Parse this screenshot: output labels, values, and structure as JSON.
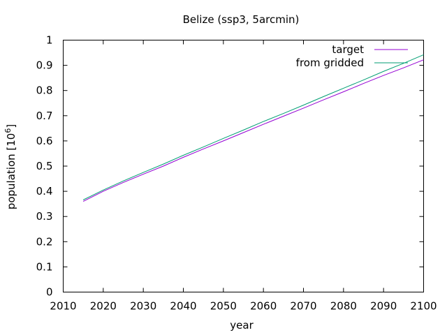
{
  "chart_data": {
    "type": "line",
    "title": "Belize (ssp3, 5arcmin)",
    "xlabel": "year",
    "ylabel_main": "population [10",
    "ylabel_exp": "6",
    "ylabel_close": "]",
    "xlim": [
      2010,
      2100
    ],
    "ylim": [
      0,
      1
    ],
    "xticks": [
      2010,
      2020,
      2030,
      2040,
      2050,
      2060,
      2070,
      2080,
      2090,
      2100
    ],
    "yticks": [
      0,
      0.1,
      0.2,
      0.3,
      0.4,
      0.5,
      0.6,
      0.7,
      0.8,
      0.9,
      1
    ],
    "ytick_labels": [
      "0",
      "0.1",
      "0.2",
      "0.3",
      "0.4",
      "0.5",
      "0.6",
      "0.7",
      "0.8",
      "0.9",
      "1"
    ],
    "xtick_labels": [
      "2010",
      "2020",
      "2030",
      "2040",
      "2050",
      "2060",
      "2070",
      "2080",
      "2090",
      "2100"
    ],
    "grid": false,
    "legend_position": "top-right",
    "x": [
      2015,
      2020,
      2025,
      2030,
      2035,
      2040,
      2045,
      2050,
      2055,
      2060,
      2065,
      2070,
      2075,
      2080,
      2085,
      2090,
      2095,
      2100
    ],
    "series": [
      {
        "name": "target",
        "color": "#9400d3",
        "values": [
          0.36,
          0.4,
          0.435,
          0.468,
          0.5,
          0.535,
          0.568,
          0.6,
          0.633,
          0.666,
          0.698,
          0.73,
          0.763,
          0.795,
          0.828,
          0.86,
          0.89,
          0.922
        ]
      },
      {
        "name": "from gridded",
        "color": "#009e73",
        "values": [
          0.366,
          0.405,
          0.441,
          0.475,
          0.508,
          0.543,
          0.576,
          0.61,
          0.643,
          0.677,
          0.709,
          0.742,
          0.776,
          0.809,
          0.842,
          0.876,
          0.908,
          0.942
        ]
      }
    ]
  }
}
